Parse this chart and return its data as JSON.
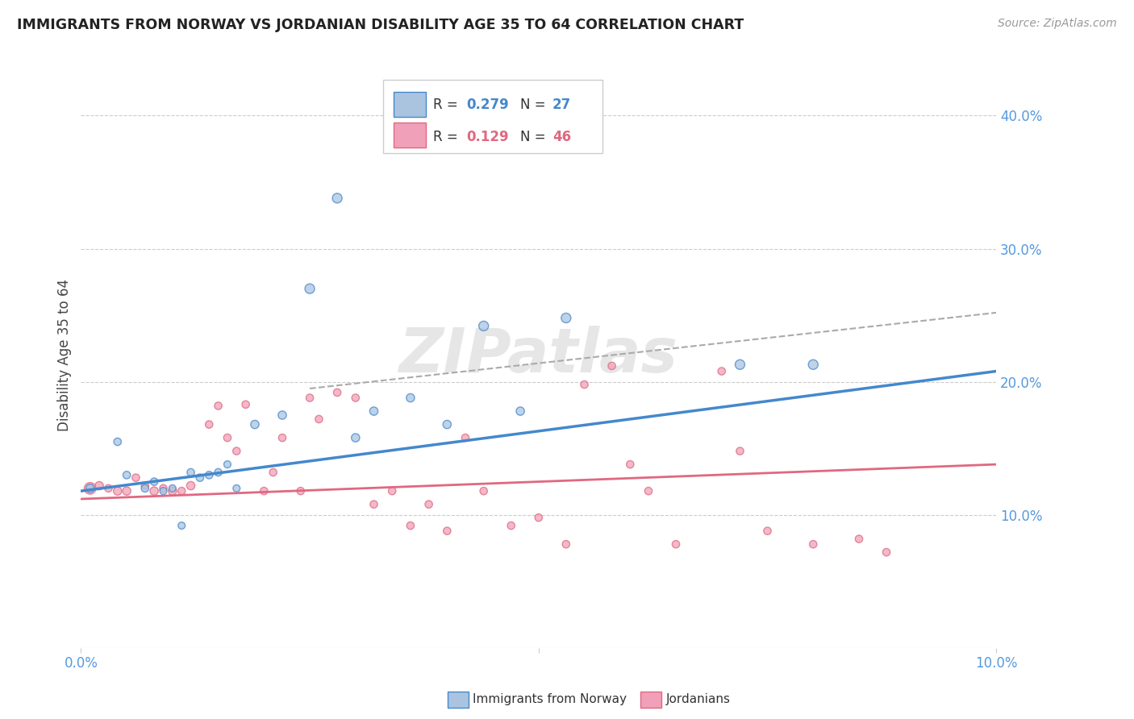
{
  "title": "IMMIGRANTS FROM NORWAY VS JORDANIAN DISABILITY AGE 35 TO 64 CORRELATION CHART",
  "source": "Source: ZipAtlas.com",
  "ylabel": "Disability Age 35 to 64",
  "xlim": [
    0.0,
    0.1
  ],
  "ylim": [
    0.0,
    0.44
  ],
  "y_ticks_right": [
    0.1,
    0.2,
    0.3,
    0.4
  ],
  "y_tick_labels_right": [
    "10.0%",
    "20.0%",
    "30.0%",
    "40.0%"
  ],
  "grid_color": "#cccccc",
  "background_color": "#ffffff",
  "norway_color": "#aac4e0",
  "norway_line_color": "#4488cc",
  "jordan_color": "#f0a0b8",
  "jordan_line_color": "#e06880",
  "legend_R1": "0.279",
  "legend_N1": "27",
  "legend_R2": "0.129",
  "legend_N2": "46",
  "watermark": "ZIPatlas",
  "norway_scatter_x": [
    0.001,
    0.004,
    0.005,
    0.007,
    0.008,
    0.009,
    0.01,
    0.011,
    0.012,
    0.013,
    0.014,
    0.015,
    0.016,
    0.017,
    0.019,
    0.022,
    0.025,
    0.028,
    0.03,
    0.032,
    0.036,
    0.04,
    0.044,
    0.048,
    0.053,
    0.072,
    0.08
  ],
  "norway_scatter_y": [
    0.12,
    0.155,
    0.13,
    0.12,
    0.125,
    0.118,
    0.12,
    0.092,
    0.132,
    0.128,
    0.13,
    0.132,
    0.138,
    0.12,
    0.168,
    0.175,
    0.27,
    0.338,
    0.158,
    0.178,
    0.188,
    0.168,
    0.242,
    0.178,
    0.248,
    0.213,
    0.213
  ],
  "norway_scatter_size": [
    55,
    45,
    45,
    45,
    45,
    40,
    40,
    40,
    45,
    45,
    45,
    45,
    40,
    40,
    55,
    55,
    75,
    75,
    55,
    55,
    55,
    55,
    75,
    55,
    75,
    75,
    75
  ],
  "jordan_scatter_x": [
    0.001,
    0.002,
    0.003,
    0.004,
    0.005,
    0.006,
    0.007,
    0.008,
    0.009,
    0.01,
    0.011,
    0.012,
    0.014,
    0.015,
    0.016,
    0.017,
    0.018,
    0.02,
    0.021,
    0.022,
    0.024,
    0.025,
    0.026,
    0.028,
    0.03,
    0.032,
    0.034,
    0.036,
    0.038,
    0.04,
    0.042,
    0.044,
    0.047,
    0.05,
    0.053,
    0.055,
    0.058,
    0.06,
    0.062,
    0.065,
    0.07,
    0.072,
    0.075,
    0.08,
    0.085,
    0.088
  ],
  "jordan_scatter_y": [
    0.12,
    0.122,
    0.12,
    0.118,
    0.118,
    0.128,
    0.122,
    0.118,
    0.12,
    0.118,
    0.118,
    0.122,
    0.168,
    0.182,
    0.158,
    0.148,
    0.183,
    0.118,
    0.132,
    0.158,
    0.118,
    0.188,
    0.172,
    0.192,
    0.188,
    0.108,
    0.118,
    0.092,
    0.108,
    0.088,
    0.158,
    0.118,
    0.092,
    0.098,
    0.078,
    0.198,
    0.212,
    0.138,
    0.118,
    0.078,
    0.208,
    0.148,
    0.088,
    0.078,
    0.082,
    0.072
  ],
  "jordan_scatter_size": [
    110,
    55,
    45,
    55,
    55,
    45,
    45,
    55,
    45,
    55,
    45,
    55,
    45,
    45,
    45,
    45,
    45,
    45,
    45,
    45,
    45,
    45,
    45,
    45,
    45,
    45,
    45,
    45,
    45,
    45,
    45,
    45,
    45,
    45,
    45,
    45,
    45,
    45,
    45,
    45,
    45,
    45,
    45,
    45,
    45,
    45
  ],
  "norway_line_x": [
    0.0,
    0.1
  ],
  "norway_line_y": [
    0.118,
    0.208
  ],
  "jordan_line_x": [
    0.0,
    0.1
  ],
  "jordan_line_y": [
    0.112,
    0.138
  ],
  "dash_line_x": [
    0.025,
    0.1
  ],
  "dash_line_y": [
    0.195,
    0.252
  ]
}
